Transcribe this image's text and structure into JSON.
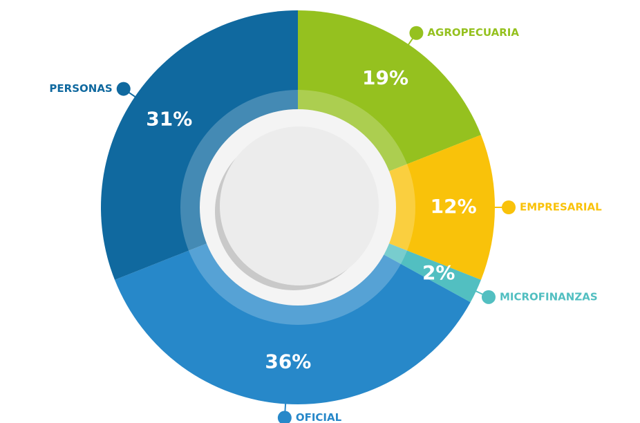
{
  "chart_data": {
    "type": "pie",
    "categories": [
      "AGROPECUARIA",
      "EMPRESARIAL",
      "MICROFINANZAS",
      "OFICIAL",
      "PERSONAS"
    ],
    "values": [
      19,
      12,
      2,
      36,
      31
    ],
    "value_labels": [
      "19%",
      "12%",
      "2%",
      "36%",
      "31%"
    ],
    "colors": [
      "#95c11f",
      "#f9c20a",
      "#52bfc1",
      "#2788c9",
      "#10699f"
    ]
  }
}
